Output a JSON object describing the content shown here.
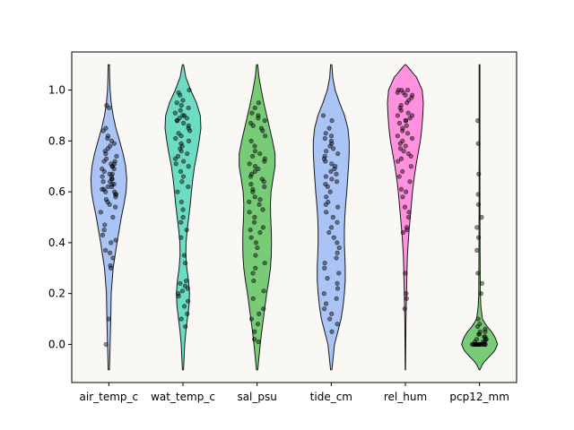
{
  "chart_data": {
    "type": "violin",
    "title": "",
    "xlabel": "",
    "ylabel": "",
    "ylim": [
      -0.15,
      1.15
    ],
    "yticks": [
      0.0,
      0.2,
      0.4,
      0.6,
      0.8,
      1.0
    ],
    "ytick_labels": [
      "0.0",
      "0.2",
      "0.4",
      "0.6",
      "0.8",
      "1.0"
    ],
    "background_color": "#f9f8f4",
    "categories": [
      "air_temp_c",
      "wat_temp_c",
      "sal_psu",
      "tide_cm",
      "rel_hum",
      "pcp12_mm"
    ],
    "series": [
      {
        "category": "air_temp_c",
        "color": "#a9c4f5",
        "range": [
          -0.1,
          1.1
        ],
        "density": [
          [
            -0.1,
            0.3
          ],
          [
            0.0,
            0.6
          ],
          [
            0.1,
            0.9
          ],
          [
            0.2,
            1.1
          ],
          [
            0.3,
            2.0
          ],
          [
            0.4,
            3.8
          ],
          [
            0.5,
            5.8
          ],
          [
            0.55,
            7.0
          ],
          [
            0.6,
            8.0
          ],
          [
            0.65,
            8.3
          ],
          [
            0.7,
            7.8
          ],
          [
            0.75,
            6.6
          ],
          [
            0.8,
            5.0
          ],
          [
            0.85,
            3.3
          ],
          [
            0.9,
            2.0
          ],
          [
            0.95,
            1.1
          ],
          [
            1.0,
            0.6
          ],
          [
            1.05,
            0.4
          ],
          [
            1.1,
            0.3
          ]
        ],
        "points": [
          0.0,
          0.1,
          0.3,
          0.31,
          0.34,
          0.36,
          0.37,
          0.4,
          0.41,
          0.43,
          0.45,
          0.47,
          0.5,
          0.52,
          0.54,
          0.55,
          0.56,
          0.57,
          0.58,
          0.59,
          0.59,
          0.6,
          0.6,
          0.61,
          0.61,
          0.62,
          0.62,
          0.63,
          0.63,
          0.64,
          0.64,
          0.65,
          0.65,
          0.66,
          0.66,
          0.67,
          0.67,
          0.68,
          0.69,
          0.69,
          0.7,
          0.7,
          0.71,
          0.71,
          0.72,
          0.72,
          0.73,
          0.74,
          0.75,
          0.76,
          0.77,
          0.78,
          0.79,
          0.8,
          0.81,
          0.82,
          0.84,
          0.85,
          0.93,
          0.94
        ]
      },
      {
        "category": "wat_temp_c",
        "color": "#6cdcc2",
        "range": [
          -0.1,
          1.1
        ],
        "density": [
          [
            -0.1,
            0.3
          ],
          [
            0.0,
            0.9
          ],
          [
            0.05,
            1.5
          ],
          [
            0.1,
            2.3
          ],
          [
            0.15,
            3.1
          ],
          [
            0.2,
            3.4
          ],
          [
            0.25,
            2.9
          ],
          [
            0.3,
            2.0
          ],
          [
            0.35,
            1.5
          ],
          [
            0.4,
            1.6
          ],
          [
            0.45,
            2.2
          ],
          [
            0.5,
            3.0
          ],
          [
            0.55,
            3.8
          ],
          [
            0.6,
            4.4
          ],
          [
            0.65,
            5.1
          ],
          [
            0.7,
            6.0
          ],
          [
            0.75,
            7.3
          ],
          [
            0.8,
            8.4
          ],
          [
            0.85,
            9.3
          ],
          [
            0.9,
            9.0
          ],
          [
            0.95,
            7.0
          ],
          [
            1.0,
            4.0
          ],
          [
            1.05,
            1.5
          ],
          [
            1.1,
            0.3
          ]
        ],
        "points": [
          0.07,
          0.1,
          0.12,
          0.15,
          0.17,
          0.19,
          0.2,
          0.21,
          0.22,
          0.23,
          0.24,
          0.25,
          0.32,
          0.35,
          0.42,
          0.45,
          0.48,
          0.5,
          0.53,
          0.56,
          0.6,
          0.62,
          0.64,
          0.66,
          0.68,
          0.7,
          0.71,
          0.72,
          0.73,
          0.74,
          0.75,
          0.76,
          0.77,
          0.78,
          0.79,
          0.8,
          0.81,
          0.82,
          0.83,
          0.84,
          0.85,
          0.86,
          0.87,
          0.88,
          0.88,
          0.89,
          0.89,
          0.9,
          0.9,
          0.91,
          0.92,
          0.93,
          0.94,
          0.95,
          0.96,
          0.98,
          0.99,
          1.0
        ]
      },
      {
        "category": "sal_psu",
        "color": "#78cc78",
        "range": [
          -0.1,
          1.1
        ],
        "density": [
          [
            -0.1,
            0.3
          ],
          [
            0.0,
            1.5
          ],
          [
            0.05,
            2.2
          ],
          [
            0.1,
            3.0
          ],
          [
            0.15,
            3.8
          ],
          [
            0.2,
            4.6
          ],
          [
            0.25,
            5.6
          ],
          [
            0.3,
            6.4
          ],
          [
            0.35,
            6.8
          ],
          [
            0.4,
            6.9
          ],
          [
            0.45,
            6.8
          ],
          [
            0.5,
            6.5
          ],
          [
            0.55,
            6.4
          ],
          [
            0.6,
            6.7
          ],
          [
            0.65,
            7.6
          ],
          [
            0.7,
            8.6
          ],
          [
            0.75,
            8.6
          ],
          [
            0.8,
            7.4
          ],
          [
            0.85,
            6.0
          ],
          [
            0.9,
            4.6
          ],
          [
            0.95,
            3.2
          ],
          [
            1.0,
            2.0
          ],
          [
            1.05,
            0.9
          ],
          [
            1.1,
            0.3
          ]
        ],
        "points": [
          0.01,
          0.02,
          0.05,
          0.08,
          0.1,
          0.12,
          0.14,
          0.18,
          0.21,
          0.25,
          0.28,
          0.3,
          0.32,
          0.35,
          0.38,
          0.4,
          0.42,
          0.44,
          0.45,
          0.46,
          0.48,
          0.5,
          0.52,
          0.53,
          0.55,
          0.56,
          0.57,
          0.58,
          0.6,
          0.61,
          0.62,
          0.63,
          0.64,
          0.65,
          0.66,
          0.67,
          0.68,
          0.69,
          0.7,
          0.71,
          0.72,
          0.73,
          0.74,
          0.75,
          0.76,
          0.78,
          0.8,
          0.82,
          0.84,
          0.85,
          0.86,
          0.87,
          0.88,
          0.89,
          0.9,
          0.91,
          0.93,
          0.95
        ]
      },
      {
        "category": "tide_cm",
        "color": "#a9c4f5",
        "range": [
          -0.1,
          1.1
        ],
        "density": [
          [
            -0.1,
            0.3
          ],
          [
            0.0,
            1.5
          ],
          [
            0.05,
            3.0
          ],
          [
            0.1,
            4.5
          ],
          [
            0.15,
            5.4
          ],
          [
            0.2,
            6.0
          ],
          [
            0.25,
            6.4
          ],
          [
            0.3,
            6.4
          ],
          [
            0.35,
            6.2
          ],
          [
            0.4,
            6.0
          ],
          [
            0.45,
            6.0
          ],
          [
            0.5,
            6.2
          ],
          [
            0.55,
            6.6
          ],
          [
            0.6,
            7.1
          ],
          [
            0.65,
            7.5
          ],
          [
            0.7,
            7.9
          ],
          [
            0.75,
            8.2
          ],
          [
            0.8,
            8.2
          ],
          [
            0.85,
            7.6
          ],
          [
            0.9,
            6.1
          ],
          [
            0.95,
            3.8
          ],
          [
            1.0,
            1.8
          ],
          [
            1.05,
            0.7
          ],
          [
            1.1,
            0.3
          ]
        ],
        "points": [
          0.05,
          0.08,
          0.1,
          0.12,
          0.14,
          0.16,
          0.18,
          0.2,
          0.22,
          0.24,
          0.26,
          0.28,
          0.3,
          0.32,
          0.34,
          0.36,
          0.38,
          0.4,
          0.42,
          0.44,
          0.46,
          0.48,
          0.5,
          0.52,
          0.54,
          0.55,
          0.56,
          0.58,
          0.6,
          0.62,
          0.63,
          0.64,
          0.65,
          0.66,
          0.67,
          0.68,
          0.69,
          0.7,
          0.71,
          0.72,
          0.73,
          0.74,
          0.75,
          0.76,
          0.77,
          0.78,
          0.79,
          0.8,
          0.81,
          0.82,
          0.83,
          0.85,
          0.88,
          0.9
        ]
      },
      {
        "category": "rel_hum",
        "color": "#ff91de",
        "range": [
          -0.1,
          1.1
        ],
        "density": [
          [
            -0.1,
            0.1
          ],
          [
            0.1,
            0.3
          ],
          [
            0.2,
            0.6
          ],
          [
            0.3,
            0.9
          ],
          [
            0.35,
            1.1
          ],
          [
            0.4,
            1.5
          ],
          [
            0.45,
            2.0
          ],
          [
            0.5,
            2.6
          ],
          [
            0.55,
            3.2
          ],
          [
            0.6,
            3.8
          ],
          [
            0.65,
            4.6
          ],
          [
            0.7,
            5.6
          ],
          [
            0.75,
            6.8
          ],
          [
            0.8,
            8.0
          ],
          [
            0.85,
            8.8
          ],
          [
            0.9,
            9.3
          ],
          [
            0.95,
            9.6
          ],
          [
            1.0,
            9.0
          ],
          [
            1.05,
            6.0
          ],
          [
            1.1,
            0.3
          ]
        ],
        "points": [
          0.14,
          0.18,
          0.2,
          0.28,
          0.44,
          0.45,
          0.46,
          0.5,
          0.52,
          0.54,
          0.58,
          0.6,
          0.61,
          0.64,
          0.66,
          0.68,
          0.7,
          0.72,
          0.73,
          0.74,
          0.75,
          0.76,
          0.77,
          0.78,
          0.79,
          0.8,
          0.81,
          0.82,
          0.83,
          0.84,
          0.85,
          0.86,
          0.87,
          0.88,
          0.88,
          0.89,
          0.9,
          0.9,
          0.91,
          0.92,
          0.93,
          0.94,
          0.95,
          0.96,
          0.97,
          0.98,
          0.98,
          0.99,
          0.99,
          1.0,
          1.0,
          1.0
        ]
      },
      {
        "category": "pcp12_mm",
        "color": "#78cc78",
        "range": [
          -0.1,
          1.1
        ],
        "density": [
          [
            -0.1,
            0.3
          ],
          [
            -0.075,
            2.5
          ],
          [
            -0.05,
            7.0
          ],
          [
            -0.025,
            11.5
          ],
          [
            0.0,
            13.5
          ],
          [
            0.025,
            12.0
          ],
          [
            0.05,
            9.0
          ],
          [
            0.075,
            5.0
          ],
          [
            0.1,
            2.2
          ],
          [
            0.15,
            1.0
          ],
          [
            0.2,
            0.6
          ],
          [
            0.4,
            0.4
          ],
          [
            0.6,
            0.3
          ],
          [
            0.8,
            0.3
          ],
          [
            1.1,
            0.3
          ]
        ],
        "points": [
          0.0,
          0.0,
          0.0,
          0.0,
          0.0,
          0.0,
          0.0,
          0.0,
          0.0,
          0.0,
          0.0,
          0.0,
          0.0,
          0.0,
          0.0,
          0.0,
          0.01,
          0.01,
          0.01,
          0.02,
          0.02,
          0.02,
          0.03,
          0.03,
          0.04,
          0.04,
          0.05,
          0.05,
          0.06,
          0.07,
          0.08,
          0.1,
          0.2,
          0.24,
          0.28,
          0.37,
          0.42,
          0.46,
          0.5,
          0.55,
          0.59,
          0.67,
          0.79,
          0.88
        ]
      }
    ]
  }
}
